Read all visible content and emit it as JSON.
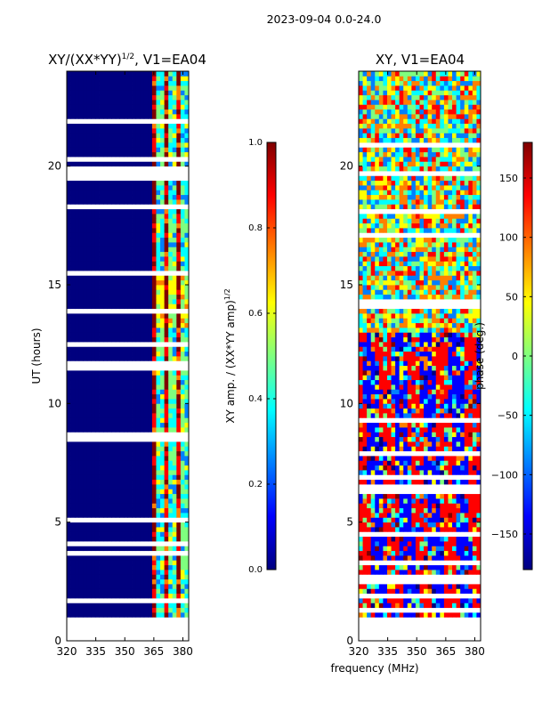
{
  "figure_title": "2023-09-04 0.0-24.0",
  "xlabel_shared": "frequency (MHz)",
  "colors": {
    "jet": [
      "#00007f",
      "#0000ff",
      "#007fff",
      "#00ffff",
      "#7fff7f",
      "#ffff00",
      "#ff7f00",
      "#ff0000",
      "#7f0000"
    ],
    "gap": "#ffffff",
    "axis": "#000000"
  },
  "chart_data": [
    {
      "type": "heatmap",
      "title_main": "XY/(XX*YY)",
      "title_sup": "1/2",
      "title_rest": ", V1=EA04",
      "xlabel": "",
      "ylabel": "UT (hours)",
      "xlim": [
        320,
        383
      ],
      "ylim": [
        0,
        24
      ],
      "xticks": [
        "320",
        "335",
        "350",
        "365",
        "380"
      ],
      "xtick_values": [
        320,
        335,
        350,
        365,
        380
      ],
      "yticks": [
        "0",
        "5",
        "10",
        "15",
        "20"
      ],
      "ytick_values": [
        0,
        5,
        10,
        15,
        20
      ],
      "data_time_range": [
        1.0,
        24.0
      ],
      "active_band_mhz": [
        363,
        381
      ],
      "colorbar": {
        "label": "XY amp. / (XX*YY amp)",
        "label_sup": "1/2",
        "range": [
          0.0,
          1.0
        ],
        "ticks": [
          "0.0",
          "0.2",
          "0.4",
          "0.6",
          "0.8",
          "1.0"
        ],
        "tick_values": [
          0.0,
          0.2,
          0.4,
          0.6,
          0.8,
          1.0
        ]
      }
    },
    {
      "type": "heatmap",
      "title": "XY, V1=EA04",
      "xlabel": "frequency (MHz)",
      "ylabel": "",
      "xlim": [
        320,
        383
      ],
      "ylim": [
        0,
        24
      ],
      "xticks": [
        "320",
        "335",
        "350",
        "365",
        "380"
      ],
      "xtick_values": [
        320,
        335,
        350,
        365,
        380
      ],
      "yticks": [
        "0",
        "5",
        "10",
        "15",
        "20"
      ],
      "ytick_values": [
        0,
        5,
        10,
        15,
        20
      ],
      "data_time_range": [
        1.0,
        24.0
      ],
      "colorbar": {
        "label": "phase (deg.)",
        "range": [
          -180,
          180
        ],
        "ticks": [
          "−150",
          "−100",
          "−50",
          "0",
          "50",
          "100",
          "150"
        ],
        "tick_values": [
          -150,
          -100,
          -50,
          0,
          50,
          100,
          150
        ]
      }
    }
  ]
}
